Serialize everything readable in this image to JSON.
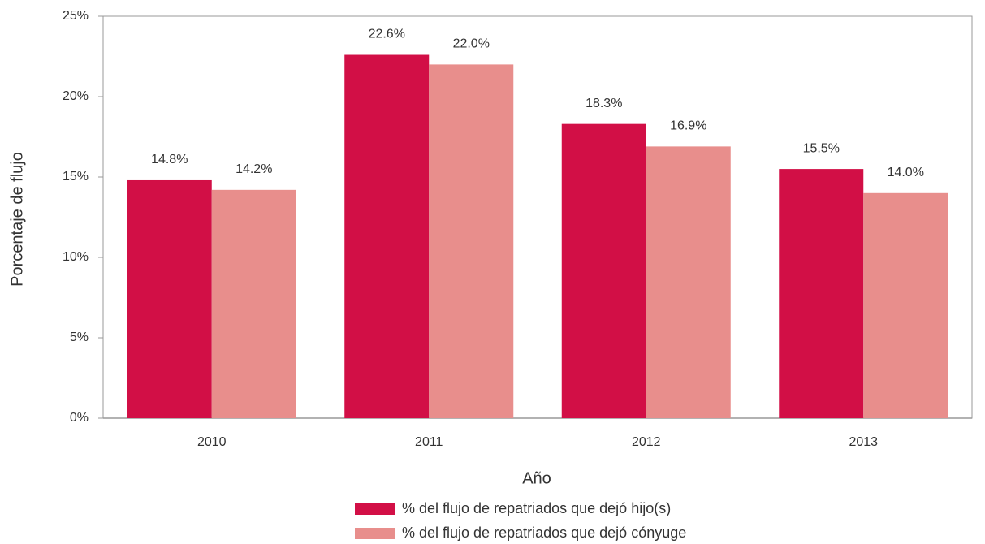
{
  "chart_data": {
    "type": "bar",
    "xlabel": "Año",
    "ylabel": "Porcentaje de flujo",
    "categories": [
      "2010",
      "2011",
      "2012",
      "2013"
    ],
    "series": [
      {
        "name": "% del flujo de repatriados que dejó hijo(s)",
        "color": "#d20f46",
        "values": [
          14.8,
          22.6,
          18.3,
          15.5
        ],
        "value_labels": [
          "14.8%",
          "22.6%",
          "18.3%",
          "15.5%"
        ]
      },
      {
        "name": "% del flujo de repatriados que dejó cónyuge",
        "color": "#e88e8c",
        "values": [
          14.2,
          22.0,
          16.9,
          14.0
        ],
        "value_labels": [
          "14.2%",
          "22.0%",
          "16.9%",
          "14.0%"
        ]
      }
    ],
    "ylim": [
      0,
      25
    ],
    "yticks": [
      {
        "value": 0,
        "label": "0%"
      },
      {
        "value": 5,
        "label": "5%"
      },
      {
        "value": 10,
        "label": "10%"
      },
      {
        "value": 15,
        "label": "15%"
      },
      {
        "value": 20,
        "label": "20%"
      },
      {
        "value": 25,
        "label": "25%"
      }
    ],
    "legend": "bottom"
  }
}
